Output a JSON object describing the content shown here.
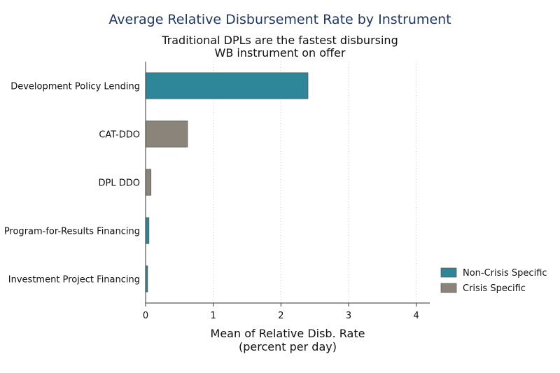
{
  "chart_data": {
    "type": "bar",
    "orientation": "horizontal",
    "title": "Average Relative Disbursement Rate by Instrument",
    "subtitle_lines": [
      "Traditional DPLs are the fastest disbursing",
      "WB instrument on offer"
    ],
    "xlabel_lines": [
      "Mean of Relative Disb. Rate",
      "(percent per day)"
    ],
    "ylabel": "",
    "xlim": [
      0,
      4.2
    ],
    "xticks": [
      0,
      1,
      2,
      3,
      4
    ],
    "grid": "vertical dotted",
    "legend_position": "bottom-right",
    "categories": [
      "Development Policy Lending",
      "CAT-DDO",
      "DPL DDO",
      "Program-for-Results Financing",
      "Investment Project Financing"
    ],
    "values": [
      2.4,
      0.62,
      0.08,
      0.05,
      0.03
    ],
    "bar_group": [
      0,
      1,
      1,
      0,
      0
    ],
    "series": [
      {
        "name": "Non-Crisis Specific",
        "color": "#2e8699"
      },
      {
        "name": "Crisis Specific",
        "color": "#8b847b"
      }
    ]
  }
}
